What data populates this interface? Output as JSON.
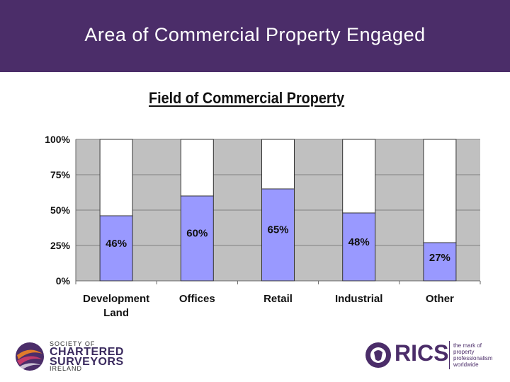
{
  "slide": {
    "title": "Area of Commercial Property Engaged"
  },
  "chart_data": {
    "type": "bar",
    "stacked": true,
    "title": "Field of Commercial Property",
    "categories": [
      [
        "Development",
        "Land"
      ],
      [
        "Offices"
      ],
      [
        "Retail"
      ],
      [
        "Industrial"
      ],
      [
        "Other"
      ]
    ],
    "values": [
      46,
      60,
      65,
      48,
      27
    ],
    "value_labels": [
      "46%",
      "60%",
      "65%",
      "48%",
      "27%"
    ],
    "y_ticks": [
      "0%",
      "25%",
      "50%",
      "75%",
      "100%"
    ],
    "ylim": [
      0,
      100
    ],
    "grid": true,
    "legend": "none",
    "colors": {
      "fill": "#9999ff",
      "remainder": "#ffffff",
      "plot_background": "#c0c0c0",
      "header": "#4b2d69"
    }
  },
  "logos": {
    "left": {
      "line1": "SOCIETY OF",
      "line2": "CHARTERED",
      "line3": "SURVEYORS",
      "line4": "IRELAND",
      "icon": "scs-swirl-icon"
    },
    "right": {
      "name": "RICS",
      "tagline": [
        "the mark of",
        "property",
        "professionalism",
        "worldwide"
      ],
      "icon": "lion-icon"
    }
  }
}
